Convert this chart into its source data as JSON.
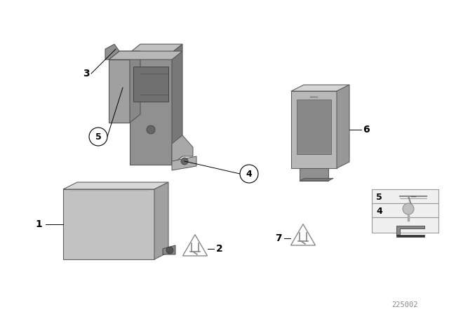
{
  "bg_color": "#ffffff",
  "diagram_number": "225002",
  "lc": "#000000",
  "grey_light": "#c8c8c8",
  "grey_mid": "#a0a0a0",
  "grey_dark": "#707070",
  "grey_darker": "#555555",
  "grey_box": "#b5b5b5",
  "grey_top": "#d5d5d5",
  "grey_right": "#909090",
  "bracket_main": "#888888",
  "bracket_light": "#aaaaaa",
  "bracket_dark": "#606060",
  "sensor_front": "#b0b0b0",
  "sensor_top": "#d0d0d0",
  "sensor_right": "#909090",
  "screen_color": "#888888",
  "label_fs": 10,
  "circle_r": 0.022
}
